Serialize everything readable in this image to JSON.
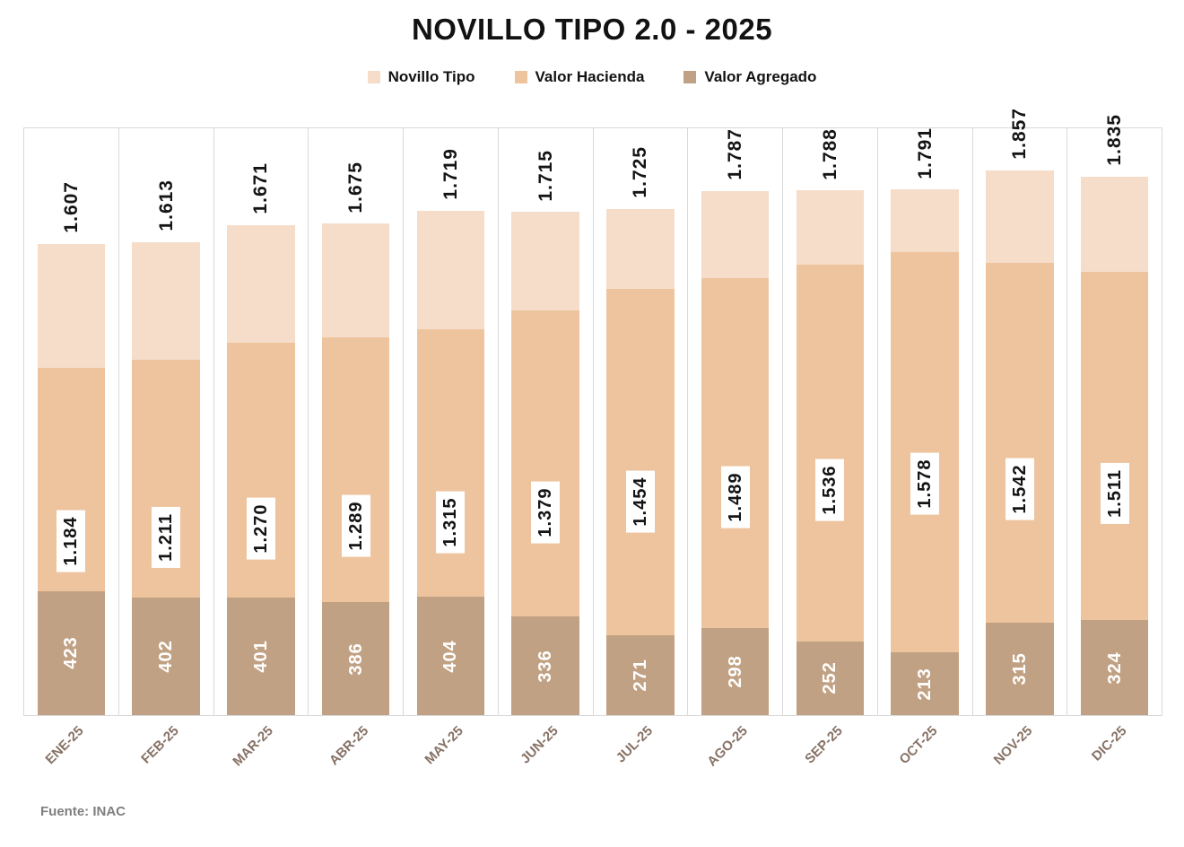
{
  "title": "NOVILLO TIPO 2.0 - 2025",
  "source": "Fuente: INAC",
  "colors": {
    "novillo_tipo": "#F5DDC9",
    "valor_hacienda": "#EEC49E",
    "valor_agregado": "#C1A183",
    "gridline": "#D9D9D9",
    "x_tick_text": "#877165",
    "source_text": "#7F7F7F"
  },
  "chart_data": {
    "type": "bar",
    "subtype": "overlapped-from-zero",
    "title": "NOVILLO TIPO 2.0 - 2025",
    "categories": [
      "ENE-25",
      "FEB-25",
      "MAR-25",
      "ABR-25",
      "MAY-25",
      "JUN-25",
      "JUL-25",
      "AGO-25",
      "SEP-25",
      "OCT-25",
      "NOV-25",
      "DIC-25"
    ],
    "series": [
      {
        "name": "Novillo Tipo",
        "color": "#F5DDC9",
        "values": [
          1607,
          1613,
          1671,
          1675,
          1719,
          1715,
          1725,
          1787,
          1788,
          1791,
          1857,
          1835
        ],
        "label_style": "rotated-black-outside-end"
      },
      {
        "name": "Valor Hacienda",
        "color": "#EEC49E",
        "values": [
          1184,
          1211,
          1270,
          1289,
          1315,
          1379,
          1454,
          1489,
          1536,
          1578,
          1542,
          1511
        ],
        "label_style": "rotated-black-white-box-at-half-height"
      },
      {
        "name": "Valor Agregado",
        "color": "#C1A183",
        "values": [
          423,
          402,
          401,
          386,
          404,
          336,
          271,
          298,
          252,
          213,
          315,
          324
        ],
        "label_style": "rotated-white-at-half-height"
      }
    ],
    "xlabel": "",
    "ylabel": "",
    "ylim": [
      0,
      2000
    ],
    "value_axis_hidden": true,
    "gridlines": "vertical-category-boundaries-and-top",
    "number_format": "thousands-dot",
    "x_tick_rotation": 45,
    "legend_position": "top"
  }
}
